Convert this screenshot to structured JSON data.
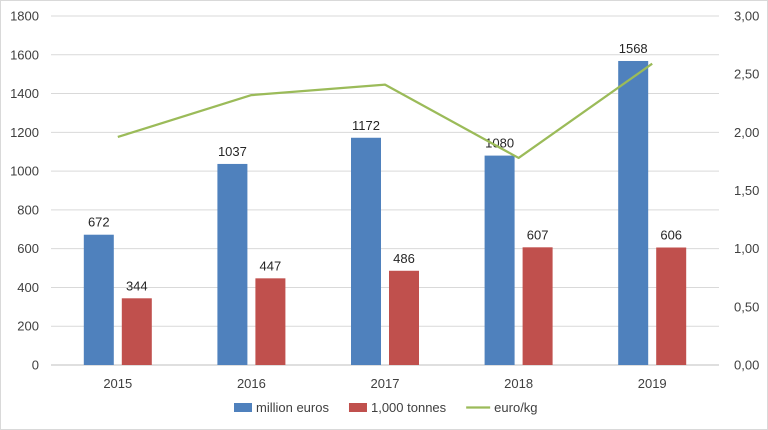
{
  "chart_data": {
    "type": "bar",
    "categories": [
      "2015",
      "2016",
      "2017",
      "2018",
      "2019"
    ],
    "series": [
      {
        "name": "million euros",
        "kind": "bar",
        "axis": "left",
        "color": "#4f81bd",
        "values": [
          672,
          1037,
          1172,
          1080,
          1568
        ]
      },
      {
        "name": "1,000 tonnes",
        "kind": "bar",
        "axis": "left",
        "color": "#c0504d",
        "values": [
          344,
          447,
          486,
          607,
          606
        ]
      },
      {
        "name": "euro/kg",
        "kind": "line",
        "axis": "right",
        "color": "#9bbb59",
        "values": [
          1.96,
          2.32,
          2.41,
          1.78,
          2.59
        ]
      }
    ],
    "left_axis": {
      "min": 0,
      "max": 1800,
      "ticks": [
        "0",
        "200",
        "400",
        "600",
        "800",
        "1000",
        "1200",
        "1400",
        "1600",
        "1800"
      ]
    },
    "right_axis": {
      "min": 0,
      "max": 3,
      "ticks": [
        "0,00",
        "0,50",
        "1,00",
        "1,50",
        "2,00",
        "2,50",
        "3,00"
      ]
    },
    "data_labels": {
      "million euros": [
        "672",
        "1037",
        "1172",
        "1080",
        "1568"
      ],
      "1,000 tonnes": [
        "344",
        "447",
        "486",
        "607",
        "606"
      ]
    },
    "grid": true,
    "legend_position": "bottom"
  }
}
